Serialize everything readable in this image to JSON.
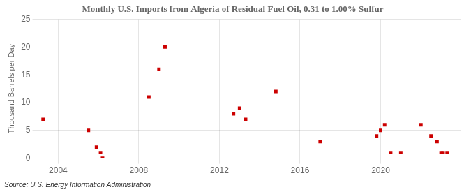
{
  "chart_data": {
    "type": "scatter",
    "title": "Monthly U.S. Imports from Algeria of Residual Fuel Oil, 0.31 to 1.00% Sulfur",
    "ylabel": "Thousand Barrels per Day",
    "annotations": [
      "Source: U.S. Energy Information Administration"
    ],
    "x": [
      2003.25,
      2005.5,
      2005.9,
      2006.1,
      2006.2,
      2008.5,
      2009.0,
      2009.3,
      2012.7,
      2013.0,
      2013.3,
      2014.8,
      2017.0,
      2019.8,
      2020.0,
      2020.2,
      2020.5,
      2021.0,
      2022.0,
      2022.5,
      2022.8,
      2023.0,
      2023.1,
      2023.3
    ],
    "values": [
      7,
      5,
      2,
      1,
      0,
      11,
      16,
      20,
      8,
      9,
      7,
      12,
      3,
      4,
      5,
      6,
      1,
      1,
      6,
      4,
      3,
      1,
      1,
      1
    ],
    "color": "#cc0000",
    "marker": "square",
    "xlim": [
      2003.0,
      2024.0
    ],
    "xticks": [
      2004,
      2008,
      2012,
      2016,
      2020
    ],
    "ylim": [
      0,
      25
    ],
    "yticks": [
      0,
      5,
      10,
      15,
      20,
      25
    ],
    "grid": true
  }
}
